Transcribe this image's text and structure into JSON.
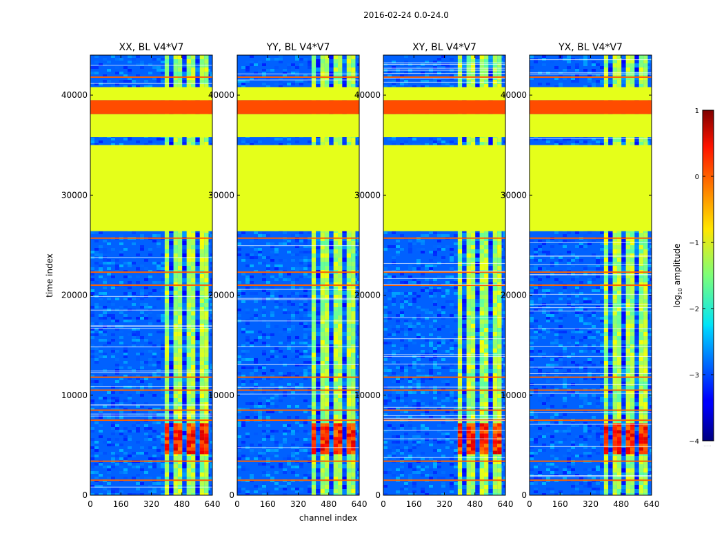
{
  "figure": {
    "suptitle": "2016-02-24 0.0-24.0"
  },
  "chart_data": {
    "type": "heatmap",
    "xlabel": "channel index",
    "ylabel": "time index",
    "xlim": [
      0,
      640
    ],
    "ylim": [
      0,
      44000
    ],
    "xticks": [
      0,
      160,
      320,
      480,
      640
    ],
    "yticks": [
      0,
      10000,
      20000,
      30000,
      40000
    ],
    "panels": [
      {
        "title": "XX, BL V4*V7",
        "pol": "XX"
      },
      {
        "title": "YY, BL V4*V7",
        "pol": "YY"
      },
      {
        "title": "XY, BL V4*V7",
        "pol": "XY"
      },
      {
        "title": "YX, BL V4*V7",
        "pol": "YX"
      }
    ],
    "structure": {
      "flagged_rows": [
        {
          "from": 26400,
          "to": 35000,
          "log_amp": -1.0
        },
        {
          "from": 35800,
          "to": 38100,
          "log_amp": -1.0
        },
        {
          "from": 38100,
          "to": 39500,
          "log_amp": 0.0
        },
        {
          "from": 39500,
          "to": 40800,
          "log_amp": -1.0
        }
      ],
      "strong_channel_range": [
        390,
        620
      ],
      "hot_time_range": [
        4200,
        7200
      ],
      "rfi_rows": [
        1500,
        3400,
        7500,
        8500,
        10500,
        11800,
        21000,
        22300,
        25700,
        34900,
        41800
      ]
    },
    "colorbar": {
      "label": "log",
      "label_sub": "10",
      "label_rest": " amplitude",
      "vmin": -4,
      "vmax": 1,
      "ticks": [
        1,
        0,
        -1,
        -2,
        -3,
        -4
      ],
      "tick_labels": [
        "1",
        "0",
        "−1",
        "−2",
        "−3",
        "−4"
      ],
      "colormap": "jet",
      "extra": "......"
    }
  }
}
